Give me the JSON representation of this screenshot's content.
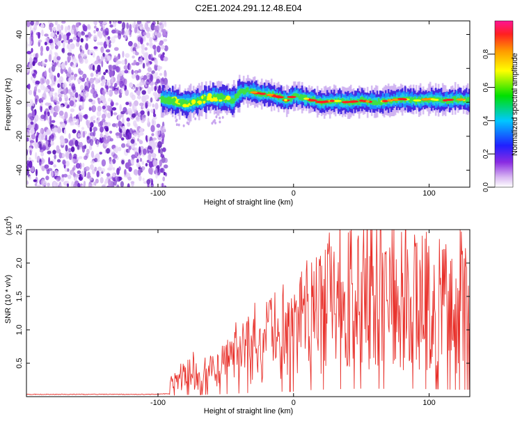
{
  "title": "C2E1.2024.291.12.48.E04",
  "chart_data": [
    {
      "type": "heatmap",
      "xlabel": "Height of straight line (km)",
      "ylabel": "Frequency (Hz)",
      "xlim": [
        -197,
        130
      ],
      "ylim": [
        -50,
        48
      ],
      "xticks": [
        {
          "value": -100,
          "label": "-100"
        },
        {
          "value": 0,
          "label": "0"
        },
        {
          "value": 100,
          "label": "100"
        }
      ],
      "yticks": [
        {
          "value": 40,
          "label": "40"
        },
        {
          "value": 20,
          "label": "20"
        },
        {
          "value": 0,
          "label": "0"
        },
        {
          "value": -20,
          "label": "-20"
        },
        {
          "value": -40,
          "label": "-40"
        }
      ],
      "noise_region_x": [
        -197,
        -98
      ],
      "signal_start_x": -98,
      "signal_frequency_track": [
        [
          -98,
          2
        ],
        [
          -90,
          1
        ],
        [
          -80,
          -1
        ],
        [
          -70,
          1
        ],
        [
          -60,
          3
        ],
        [
          -50,
          2
        ],
        [
          -45,
          1
        ],
        [
          -40,
          6
        ],
        [
          -35,
          7
        ],
        [
          -30,
          6
        ],
        [
          -25,
          5
        ],
        [
          -20,
          5
        ],
        [
          -15,
          4
        ],
        [
          -10,
          3
        ],
        [
          -5,
          1
        ],
        [
          0,
          4
        ],
        [
          5,
          3
        ],
        [
          10,
          2
        ],
        [
          15,
          1
        ],
        [
          20,
          0
        ],
        [
          30,
          1
        ],
        [
          40,
          0
        ],
        [
          50,
          1
        ],
        [
          60,
          0
        ],
        [
          70,
          1
        ],
        [
          80,
          2
        ],
        [
          90,
          1
        ],
        [
          100,
          2
        ],
        [
          110,
          1
        ],
        [
          120,
          2
        ],
        [
          130,
          1
        ]
      ],
      "colorbar": {
        "label": "Normalized spectral amplitude",
        "range": [
          0,
          1
        ],
        "ticks": [
          "0.0",
          "0.2",
          "0.4",
          "0.6",
          "0.8"
        ]
      }
    },
    {
      "type": "line",
      "xlabel": "Height of straight line (km)",
      "ylabel": "SNR (10 * v/v)",
      "yscale_note": "(x10^4)",
      "xlim": [
        -197,
        130
      ],
      "ylim": [
        0,
        2.5
      ],
      "xticks": [
        {
          "value": -100,
          "label": "-100"
        },
        {
          "value": 0,
          "label": "0"
        },
        {
          "value": 100,
          "label": "100"
        }
      ],
      "yticks": [
        {
          "value": 2.5,
          "label": "2.5"
        },
        {
          "value": 2.0,
          "label": "2.0"
        },
        {
          "value": 1.5,
          "label": "1.5"
        },
        {
          "value": 1.0,
          "label": "1.0"
        },
        {
          "value": 0.5,
          "label": "0.5"
        }
      ],
      "series": [
        {
          "color": "#e8302a",
          "envelope": [
            [
              -197,
              0.03
            ],
            [
              -100,
              0.03
            ],
            [
              -92,
              0.04
            ],
            [
              -90,
              0.2
            ],
            [
              -80,
              0.32
            ],
            [
              -70,
              0.35
            ],
            [
              -60,
              0.38
            ],
            [
              -50,
              0.48
            ],
            [
              -40,
              0.6
            ],
            [
              -30,
              0.75
            ],
            [
              -20,
              0.85
            ],
            [
              -10,
              0.92
            ],
            [
              0,
              0.95
            ],
            [
              10,
              1.2
            ],
            [
              20,
              1.3
            ],
            [
              30,
              1.4
            ],
            [
              40,
              1.45
            ],
            [
              50,
              1.5
            ],
            [
              60,
              1.5
            ],
            [
              70,
              1.45
            ],
            [
              80,
              1.5
            ],
            [
              90,
              1.5
            ],
            [
              100,
              1.4
            ],
            [
              110,
              1.35
            ],
            [
              120,
              1.3
            ],
            [
              130,
              1.3
            ]
          ]
        }
      ]
    }
  ]
}
